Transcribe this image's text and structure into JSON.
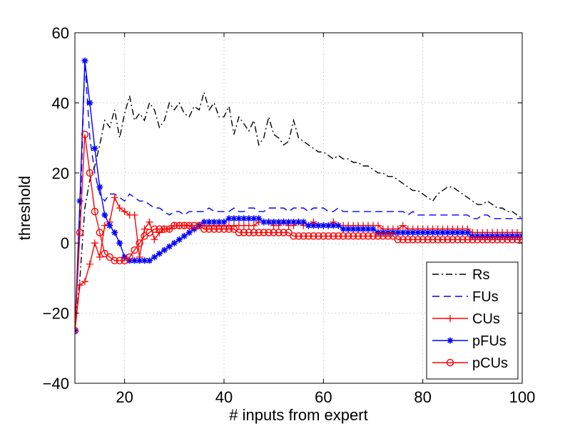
{
  "chart_data": {
    "type": "line",
    "title": "",
    "xlabel": "# inputs from expert",
    "ylabel": "threshold",
    "xlim": [
      10,
      100
    ],
    "ylim": [
      -40,
      60
    ],
    "xticks": [
      20,
      40,
      60,
      80,
      100
    ],
    "yticks": [
      -40,
      -20,
      0,
      20,
      40,
      60
    ],
    "xtick_labels": [
      "20",
      "40",
      "60",
      "80",
      "100"
    ],
    "ytick_labels": [
      "−40",
      "−20",
      "0",
      "20",
      "40",
      "60"
    ],
    "grid": true,
    "legend_position": "bottom-right",
    "x": [
      10,
      11,
      12,
      13,
      14,
      15,
      16,
      17,
      18,
      19,
      20,
      21,
      22,
      23,
      24,
      25,
      26,
      27,
      28,
      29,
      30,
      31,
      32,
      33,
      34,
      35,
      36,
      37,
      38,
      39,
      40,
      41,
      42,
      43,
      44,
      45,
      46,
      47,
      48,
      49,
      50,
      51,
      52,
      53,
      54,
      55,
      56,
      57,
      58,
      59,
      60,
      61,
      62,
      63,
      64,
      65,
      66,
      67,
      68,
      69,
      70,
      71,
      72,
      73,
      74,
      75,
      76,
      77,
      78,
      79,
      80,
      81,
      82,
      83,
      84,
      85,
      86,
      87,
      88,
      89,
      90,
      91,
      92,
      93,
      94,
      95,
      96,
      97,
      98,
      99,
      100
    ],
    "series": [
      {
        "name": "Rs",
        "color": "#000000",
        "dash": "9,4,2,4",
        "marker": "none",
        "values": [
          -25,
          -10,
          10,
          18,
          22,
          28,
          35,
          33,
          38,
          30,
          37,
          42,
          35,
          37,
          35,
          40,
          38,
          33,
          35,
          40,
          38,
          40,
          37,
          36,
          39,
          38,
          43,
          38,
          40,
          36,
          36,
          39,
          31,
          36,
          34,
          32,
          35,
          28,
          30,
          36,
          31,
          30,
          28,
          29,
          35,
          30,
          29,
          28,
          27,
          26,
          26,
          25,
          24,
          25,
          24,
          24,
          23,
          23,
          22,
          22,
          21,
          20,
          20,
          19,
          19,
          18,
          17,
          16,
          15,
          15,
          14,
          13,
          12,
          14,
          15,
          16,
          16,
          15,
          14,
          13,
          12,
          11,
          11,
          12,
          11,
          10,
          10,
          9,
          9,
          8,
          7
        ]
      },
      {
        "name": "FUs",
        "color": "#0000ff",
        "dash": "10,6",
        "marker": "none",
        "values": [
          -25,
          5,
          52,
          30,
          20,
          14,
          12,
          14,
          14,
          13,
          12,
          14,
          13,
          12,
          12,
          11,
          10,
          10,
          9,
          8,
          9,
          9,
          8,
          9,
          9,
          9,
          9,
          10,
          9,
          9,
          9,
          9,
          10,
          9,
          9,
          10,
          10,
          9,
          9,
          10,
          10,
          10,
          10,
          9,
          10,
          10,
          10,
          9,
          10,
          10,
          10,
          9,
          9,
          10,
          9,
          9,
          9,
          9,
          9,
          9,
          9,
          9,
          9,
          9,
          9,
          9,
          9,
          8,
          9,
          8,
          8,
          8,
          8,
          8,
          8,
          8,
          8,
          8,
          8,
          8,
          7,
          7,
          8,
          8,
          7,
          7,
          7,
          7,
          7,
          7,
          7
        ]
      },
      {
        "name": "CUs",
        "color": "#ff0000",
        "dash": "none",
        "marker": "plus",
        "values": [
          -25,
          -12,
          -11,
          -6,
          0,
          -4,
          5,
          6,
          13,
          10,
          9,
          8,
          8,
          -4,
          4,
          6,
          1,
          3,
          4,
          4,
          5,
          5,
          5,
          5,
          4,
          5,
          5,
          5,
          5,
          5,
          5,
          5,
          5,
          5,
          5,
          5,
          5,
          6,
          6,
          6,
          5,
          5,
          6,
          5,
          5,
          6,
          5,
          5,
          6,
          5,
          5,
          5,
          6,
          5,
          5,
          5,
          5,
          5,
          5,
          5,
          5,
          5,
          4,
          4,
          4,
          4,
          5,
          4,
          4,
          4,
          4,
          4,
          4,
          4,
          4,
          4,
          4,
          4,
          4,
          4,
          3,
          3,
          3,
          3,
          3,
          3,
          3,
          3,
          3,
          3,
          3
        ]
      },
      {
        "name": "pFUs",
        "color": "#0000ff",
        "dash": "none",
        "marker": "star",
        "values": [
          -25,
          12,
          52,
          40,
          27,
          16,
          8,
          5,
          3,
          0,
          -4,
          -5,
          -5,
          -5,
          -5,
          -5,
          -4,
          -3,
          -2,
          -1,
          0,
          1,
          2,
          3,
          4,
          5,
          6,
          6,
          6,
          6,
          6,
          7,
          7,
          7,
          7,
          7,
          7,
          7,
          6,
          6,
          6,
          6,
          6,
          6,
          6,
          6,
          6,
          5,
          5,
          5,
          5,
          5,
          5,
          5,
          4,
          4,
          4,
          4,
          4,
          4,
          4,
          3,
          3,
          3,
          3,
          3,
          3,
          3,
          3,
          3,
          3,
          3,
          3,
          3,
          3,
          3,
          3,
          3,
          3,
          3,
          2,
          2,
          2,
          2,
          2,
          2,
          2,
          2,
          2,
          2,
          2
        ]
      },
      {
        "name": "pCUs",
        "color": "#ff0000",
        "dash": "none",
        "marker": "circle",
        "values": [
          -25,
          3,
          31,
          20,
          9,
          3,
          -3,
          -4,
          -5,
          -5,
          -5,
          -4,
          -2,
          0,
          2,
          3,
          4,
          4,
          4,
          4,
          5,
          5,
          5,
          5,
          5,
          5,
          4,
          4,
          4,
          4,
          4,
          4,
          4,
          3,
          3,
          3,
          3,
          3,
          3,
          3,
          3,
          3,
          3,
          3,
          2,
          2,
          2,
          2,
          2,
          2,
          2,
          2,
          2,
          2,
          2,
          2,
          2,
          2,
          2,
          2,
          2,
          2,
          2,
          2,
          2,
          1,
          1,
          1,
          1,
          1,
          1,
          1,
          1,
          1,
          1,
          1,
          1,
          1,
          1,
          1,
          1,
          1,
          1,
          1,
          1,
          1,
          1,
          1,
          1,
          1,
          1
        ]
      }
    ]
  }
}
